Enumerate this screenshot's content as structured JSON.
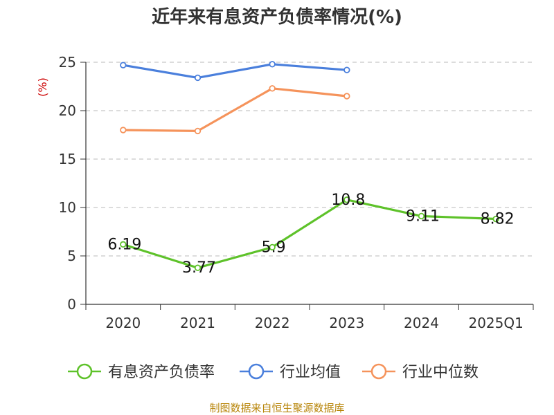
{
  "chart_data": {
    "type": "line",
    "title": "近年来有息资产负债率情况(%)",
    "ylabel": "(%)",
    "xlabel": "",
    "categories": [
      "2020",
      "2021",
      "2022",
      "2023",
      "2024",
      "2025Q1"
    ],
    "ylim": [
      0,
      25
    ],
    "yticks": [
      0,
      5,
      10,
      15,
      20,
      25
    ],
    "grid": true,
    "legend_position": "bottom",
    "series": [
      {
        "name": "有息资产负债率",
        "color": "#5ec22a",
        "values": [
          6.19,
          3.77,
          5.9,
          10.8,
          9.11,
          8.82
        ],
        "labels": [
          "6.19",
          "3.77",
          "5.9",
          "10.8",
          "9.11",
          "8.82"
        ]
      },
      {
        "name": "行业均值",
        "color": "#4a7fdc",
        "values": [
          24.7,
          23.4,
          24.8,
          24.2,
          null,
          null
        ]
      },
      {
        "name": "行业中位数",
        "color": "#f5935b",
        "values": [
          18.0,
          17.9,
          22.3,
          21.5,
          null,
          null
        ]
      }
    ],
    "source": "制图数据来自恒生聚源数据库"
  }
}
